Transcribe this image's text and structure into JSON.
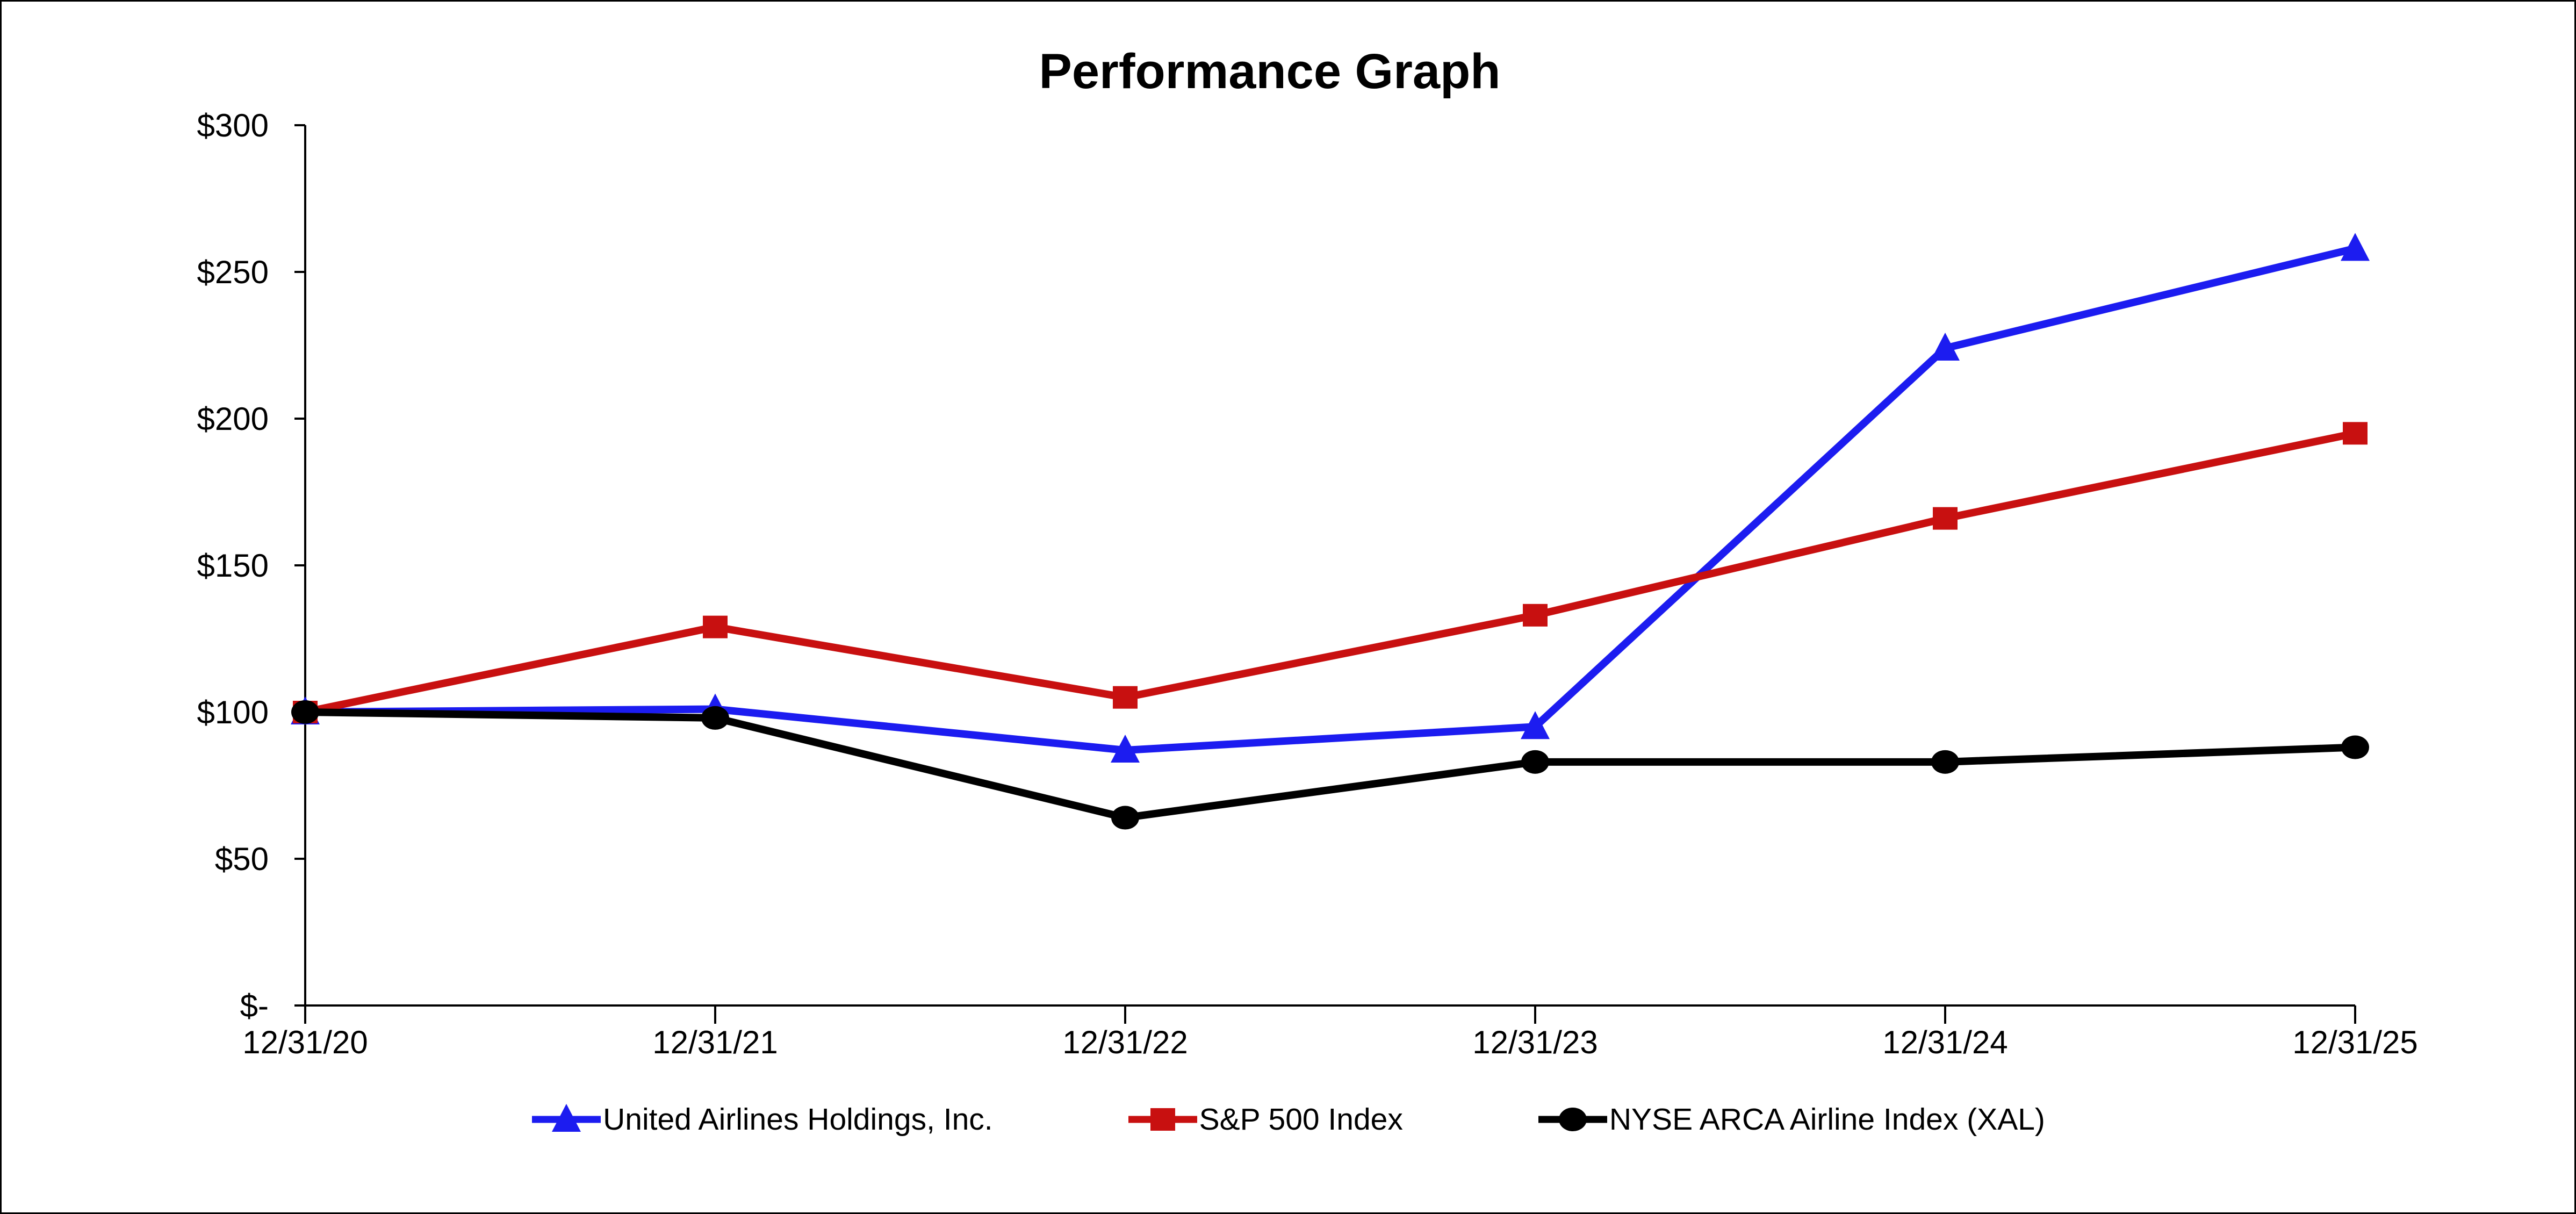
{
  "chart_data": {
    "type": "line",
    "title": "Performance Graph",
    "categories": [
      "12/31/20",
      "12/31/21",
      "12/31/22",
      "12/31/23",
      "12/31/24",
      "12/31/25"
    ],
    "series": [
      {
        "name": "United Airlines Holdings, Inc.",
        "color": "#1c1cf0",
        "marker": "triangle",
        "values": [
          100,
          101,
          87,
          95,
          224,
          258
        ]
      },
      {
        "name": "S&P 500 Index",
        "color": "#c81010",
        "marker": "square",
        "values": [
          100,
          129,
          105,
          133,
          166,
          195
        ]
      },
      {
        "name": "NYSE ARCA Airline Index (XAL)",
        "color": "#000000",
        "marker": "circle",
        "values": [
          100,
          98,
          64,
          83,
          83,
          88
        ]
      }
    ],
    "ylim": [
      0,
      300
    ],
    "ytick_step": 50,
    "ytick_labels": [
      "$-",
      "$50",
      "$100",
      "$150",
      "$200",
      "$250",
      "$300"
    ],
    "xlabel": "",
    "ylabel": "",
    "grid": false,
    "legend_position": "bottom",
    "axis_color": "#000000",
    "background": "#ffffff"
  }
}
